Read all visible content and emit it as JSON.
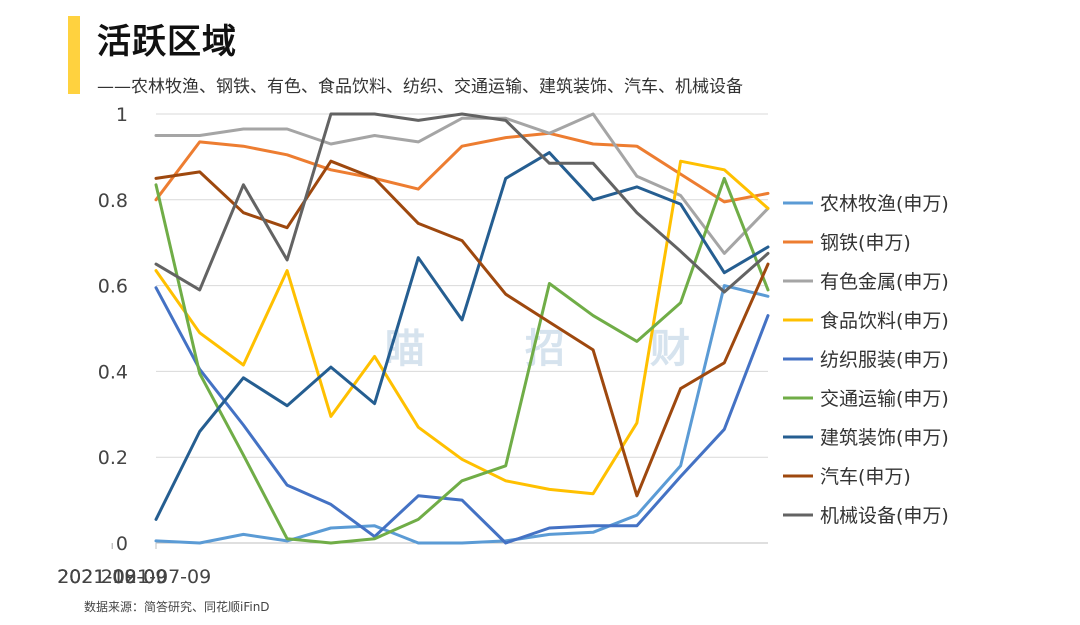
{
  "header": {
    "title": "活跃区域",
    "subtitle": "——农林牧渔、钢铁、有色、食品饮料、纺织、交通运输、建筑装饰、汽车、机械设备",
    "accent_color": "#FFD23F"
  },
  "source": "数据来源：简答研究、同花顺iFinD",
  "watermark": [
    "瞄",
    "招",
    "财"
  ],
  "chart_data": {
    "type": "line",
    "title": "",
    "xlabel": "",
    "ylabel": "",
    "ylim": [
      0,
      1
    ],
    "y_ticks": [
      0,
      0.2,
      0.4,
      0.6,
      0.8,
      1
    ],
    "y_tick_labels": [
      "0",
      "0.2",
      "0.4",
      "0.6",
      "0.8",
      "1"
    ],
    "x_ticks": [
      "2021-07-09",
      "2021-08-09",
      "2021-09-09",
      "2021-10-09"
    ],
    "x": [
      "2021-07-09",
      "2021-07-16",
      "2021-07-23",
      "2021-07-30",
      "2021-08-06",
      "2021-08-13",
      "2021-08-20",
      "2021-08-27",
      "2021-09-03",
      "2021-09-10",
      "2021-09-17",
      "2021-09-24",
      "2021-10-01",
      "2021-10-08",
      "2021-10-15"
    ],
    "grid": "horizontal",
    "legend_position": "right",
    "series": [
      {
        "name": "农林牧渔(申万)",
        "color": "#5B9BD5",
        "values": [
          0.005,
          0.0,
          0.02,
          0.005,
          0.035,
          0.04,
          0.0,
          0.0,
          0.005,
          0.02,
          0.025,
          0.065,
          0.18,
          0.6,
          0.575
        ]
      },
      {
        "name": "钢铁(申万)",
        "color": "#ED7D31",
        "values": [
          0.8,
          0.935,
          0.925,
          0.905,
          0.87,
          0.85,
          0.825,
          0.925,
          0.945,
          0.955,
          0.93,
          0.925,
          0.86,
          0.795,
          0.815
        ]
      },
      {
        "name": "有色金属(申万)",
        "color": "#A5A5A5",
        "values": [
          0.95,
          0.95,
          0.965,
          0.965,
          0.93,
          0.95,
          0.935,
          0.99,
          0.99,
          0.955,
          1.0,
          0.855,
          0.81,
          0.675,
          0.78
        ]
      },
      {
        "name": "食品饮料(申万)",
        "color": "#FFC000",
        "values": [
          0.635,
          0.49,
          0.415,
          0.635,
          0.295,
          0.435,
          0.27,
          0.195,
          0.145,
          0.125,
          0.115,
          0.28,
          0.89,
          0.87,
          0.78
        ]
      },
      {
        "name": "纺织服装(申万)",
        "color": "#4472C4",
        "values": [
          0.595,
          0.405,
          0.275,
          0.135,
          0.09,
          0.015,
          0.11,
          0.1,
          0.0,
          0.035,
          0.04,
          0.04,
          0.155,
          0.265,
          0.53
        ]
      },
      {
        "name": "交通运输(申万)",
        "color": "#70AD47",
        "values": [
          0.835,
          0.395,
          0.205,
          0.01,
          0.0,
          0.01,
          0.055,
          0.145,
          0.18,
          0.605,
          0.53,
          0.47,
          0.56,
          0.85,
          0.59
        ]
      },
      {
        "name": "建筑装饰(申万)",
        "color": "#255E91",
        "values": [
          0.055,
          0.26,
          0.385,
          0.32,
          0.41,
          0.325,
          0.665,
          0.52,
          0.85,
          0.91,
          0.8,
          0.83,
          0.79,
          0.63,
          0.69
        ]
      },
      {
        "name": "汽车(申万)",
        "color": "#9E480E",
        "values": [
          0.85,
          0.865,
          0.77,
          0.735,
          0.89,
          0.85,
          0.745,
          0.705,
          0.58,
          0.515,
          0.45,
          0.11,
          0.36,
          0.42,
          0.65
        ]
      },
      {
        "name": "机械设备(申万)",
        "color": "#636363",
        "values": [
          0.65,
          0.59,
          0.835,
          0.66,
          1.0,
          1.0,
          0.985,
          1.0,
          0.985,
          0.885,
          0.885,
          0.77,
          0.68,
          0.585,
          0.675
        ]
      }
    ]
  }
}
